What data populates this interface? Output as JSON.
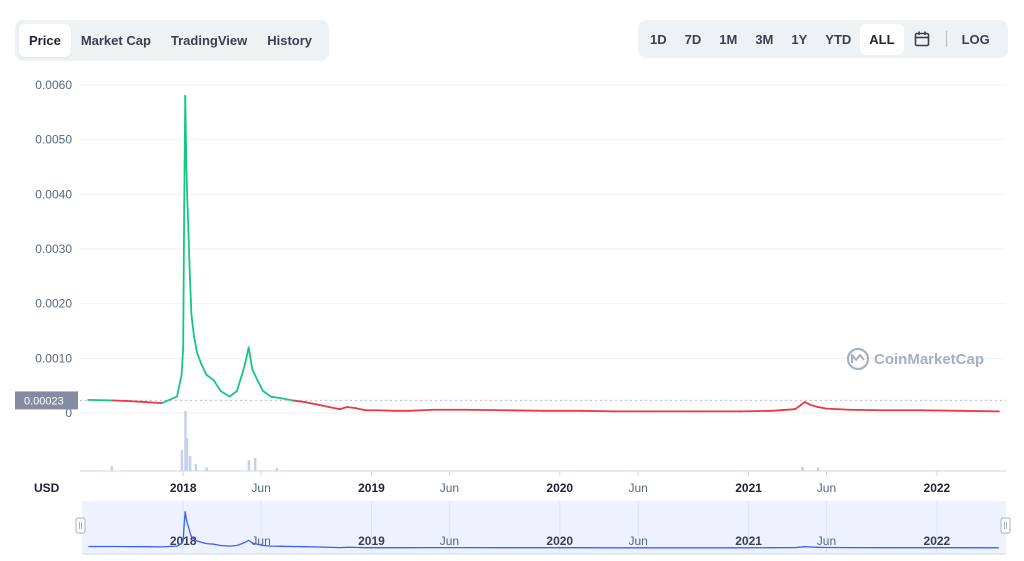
{
  "tabs": [
    {
      "label": "Price",
      "active": true
    },
    {
      "label": "Market Cap",
      "active": false
    },
    {
      "label": "TradingView",
      "active": false
    },
    {
      "label": "History",
      "active": false
    }
  ],
  "ranges": [
    {
      "label": "1D",
      "active": false
    },
    {
      "label": "7D",
      "active": false
    },
    {
      "label": "1M",
      "active": false
    },
    {
      "label": "3M",
      "active": false
    },
    {
      "label": "1Y",
      "active": false
    },
    {
      "label": "YTD",
      "active": false
    },
    {
      "label": "ALL",
      "active": true
    }
  ],
  "calendar_icon": "calendar-icon",
  "log_label": "LOG",
  "currency_label": "USD",
  "watermark": {
    "text": "CoinMarketCap",
    "icon": "coinmarketcap-logo-icon"
  },
  "current_price_tag": "0.00023",
  "colors": {
    "up": "#16c784",
    "down": "#ea3943",
    "volume": "#c8d0e7",
    "navigator": "#3861fb",
    "navigator_fill": "#eef2ff",
    "grid": "#eff2f5"
  },
  "chart_data": {
    "type": "line",
    "title": "",
    "ylabel": "",
    "xlabel": "",
    "ylim": [
      0,
      0.006
    ],
    "yticks": [
      "0.0060",
      "0.0050",
      "0.0040",
      "0.0030",
      "0.0020",
      "0.0010",
      "0"
    ],
    "xticks": [
      "2018",
      "Jun",
      "2019",
      "Jun",
      "2020",
      "Jun",
      "2021",
      "Jun",
      "2022"
    ],
    "grid": true,
    "reference_price": 0.00023,
    "series": [
      {
        "x": [
          "2017-07-01",
          "2017-08-15",
          "2017-09-15",
          "2017-10-20",
          "2017-11-20",
          "2017-12-20",
          "2017-12-29",
          "2018-01-01",
          "2018-01-03",
          "2018-01-05",
          "2018-01-07",
          "2018-01-09",
          "2018-01-11",
          "2018-01-14",
          "2018-01-17",
          "2018-01-22",
          "2018-01-28",
          "2018-02-05",
          "2018-02-15",
          "2018-03-01",
          "2018-03-15",
          "2018-04-01",
          "2018-04-15",
          "2018-04-25",
          "2018-05-01",
          "2018-05-08",
          "2018-05-15",
          "2018-05-25",
          "2018-06-05",
          "2018-06-20",
          "2018-07-10",
          "2018-08-01",
          "2018-08-25",
          "2018-09-20",
          "2018-10-15",
          "2018-11-01",
          "2018-11-15",
          "2018-12-01",
          "2018-12-20",
          "2019-01-15",
          "2019-02-15",
          "2019-03-15",
          "2019-05-01",
          "2019-07-01",
          "2019-09-15",
          "2019-12-01",
          "2020-02-15",
          "2020-04-15",
          "2020-07-01",
          "2020-10-01",
          "2020-12-15",
          "2021-02-15",
          "2021-04-01",
          "2021-04-10",
          "2021-04-20",
          "2021-05-01",
          "2021-05-15",
          "2021-06-01",
          "2021-07-15",
          "2021-09-15",
          "2021-12-01",
          "2022-02-15",
          "2022-05-01"
        ],
        "y": [
          0.00024,
          0.00023,
          0.00022,
          0.0002,
          0.00018,
          0.0003,
          0.0007,
          0.0012,
          0.0038,
          0.0058,
          0.0046,
          0.0039,
          0.0034,
          0.0025,
          0.0018,
          0.0014,
          0.0011,
          0.0009,
          0.0007,
          0.0006,
          0.0004,
          0.0003,
          0.0004,
          0.0007,
          0.0009,
          0.0012,
          0.0008,
          0.0006,
          0.0004,
          0.0003,
          0.00027,
          0.00023,
          0.0002,
          0.00015,
          0.0001,
          7e-05,
          0.00011,
          9e-05,
          5e-05,
          5e-05,
          4e-05,
          4e-05,
          6e-05,
          6e-05,
          5e-05,
          4e-05,
          4e-05,
          3e-05,
          3e-05,
          3e-05,
          3e-05,
          4e-05,
          7e-05,
          0.00013,
          0.0002,
          0.00015,
          0.00011,
          8e-05,
          6e-05,
          5e-05,
          5e-05,
          4e-05,
          3e-05
        ]
      }
    ],
    "volume": {
      "x": [
        "2017-08-15",
        "2017-12-29",
        "2018-01-05",
        "2018-01-08",
        "2018-01-14",
        "2018-01-25",
        "2018-02-15",
        "2018-05-08",
        "2018-05-20",
        "2018-07-01",
        "2021-04-15",
        "2021-05-15"
      ],
      "values": [
        0.08,
        0.35,
        1.0,
        0.55,
        0.25,
        0.12,
        0.06,
        0.18,
        0.22,
        0.05,
        0.07,
        0.06
      ]
    }
  }
}
